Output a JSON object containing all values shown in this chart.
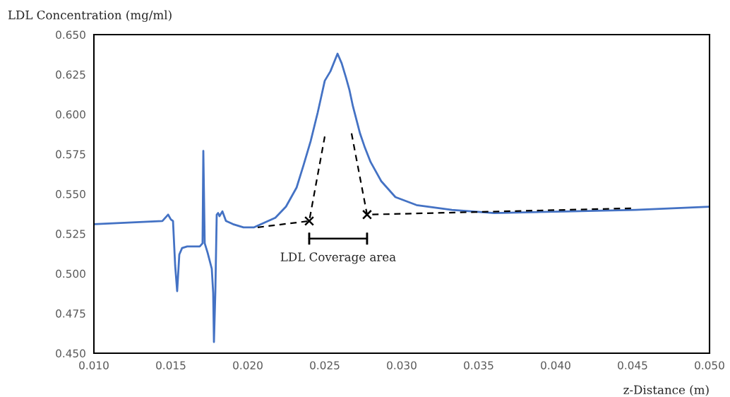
{
  "chart_data": {
    "type": "line",
    "xlabel": "z-Distance (m)",
    "ylabel": "LDL Concentration (mg/ml)",
    "annotations": [
      "LDL Coverage area"
    ],
    "xlim": [
      0.01,
      0.05
    ],
    "xticks": [
      {
        "value": 0.01,
        "label": "0.010"
      },
      {
        "value": 0.015,
        "label": "0.015"
      },
      {
        "value": 0.02,
        "label": "0.020"
      },
      {
        "value": 0.025,
        "label": "0.025"
      },
      {
        "value": 0.03,
        "label": "0.030"
      },
      {
        "value": 0.035,
        "label": "0.035"
      },
      {
        "value": 0.04,
        "label": "0.040"
      },
      {
        "value": 0.045,
        "label": "0.045"
      },
      {
        "value": 0.05,
        "label": "0.050"
      }
    ],
    "ylim": [
      0.45,
      0.65
    ],
    "yticks": [
      {
        "value": 0.45,
        "label": "0.450"
      },
      {
        "value": 0.475,
        "label": "0.475"
      },
      {
        "value": 0.5,
        "label": "0.500"
      },
      {
        "value": 0.525,
        "label": "0.525"
      },
      {
        "value": 0.55,
        "label": "0.550"
      },
      {
        "value": 0.575,
        "label": "0.575"
      },
      {
        "value": 0.6,
        "label": "0.600"
      },
      {
        "value": 0.625,
        "label": "0.625"
      },
      {
        "value": 0.65,
        "label": "0.650"
      }
    ],
    "grid": false,
    "legend": false,
    "series": [
      {
        "color": "#4472c4",
        "line_style": "solid",
        "marker": "none",
        "x": [
          0.01,
          0.01445,
          0.01482,
          0.015,
          0.01514,
          0.01528,
          0.01541,
          0.01555,
          0.01573,
          0.01606,
          0.01688,
          0.01706,
          0.01711,
          0.0172,
          0.01739,
          0.01766,
          0.01775,
          0.0178,
          0.01789,
          0.01798,
          0.01807,
          0.01816,
          0.01835,
          0.01858,
          0.01904,
          0.01972,
          0.02041,
          0.02087,
          0.02179,
          0.02248,
          0.02317,
          0.02362,
          0.02408,
          0.02454,
          0.02477,
          0.025,
          0.02537,
          0.02583,
          0.0261,
          0.02638,
          0.02661,
          0.02683,
          0.02729,
          0.02761,
          0.02798,
          0.02867,
          0.02913,
          0.02959,
          0.03096,
          0.03326,
          0.03601,
          0.0406,
          0.04518,
          0.05
        ],
        "values": [
          0.531,
          0.533,
          0.537,
          0.534,
          0.533,
          0.505,
          0.489,
          0.512,
          0.516,
          0.517,
          0.517,
          0.519,
          0.577,
          0.519,
          0.513,
          0.503,
          0.488,
          0.457,
          0.488,
          0.537,
          0.538,
          0.536,
          0.539,
          0.533,
          0.531,
          0.529,
          0.529,
          0.531,
          0.535,
          0.542,
          0.554,
          0.568,
          0.583,
          0.601,
          0.611,
          0.621,
          0.627,
          0.638,
          0.632,
          0.623,
          0.615,
          0.605,
          0.588,
          0.579,
          0.57,
          0.558,
          0.553,
          0.548,
          0.543,
          0.54,
          0.538,
          0.539,
          0.54,
          0.542
        ]
      },
      {
        "color": "#000000",
        "line_style": "dashed",
        "marker": "none",
        "x": [
          0.02064,
          0.02399,
          0.025
        ],
        "values": [
          0.529,
          0.533,
          0.586
        ]
      },
      {
        "color": "#000000",
        "line_style": "dashed",
        "marker": "none",
        "x": [
          0.02674,
          0.02775,
          0.04495
        ],
        "values": [
          0.588,
          0.537,
          0.541
        ]
      },
      {
        "type": "scatter",
        "color": "#000000",
        "marker": "cross",
        "x": [
          0.02399,
          0.02775
        ],
        "values": [
          0.533,
          0.537
        ]
      }
    ]
  }
}
